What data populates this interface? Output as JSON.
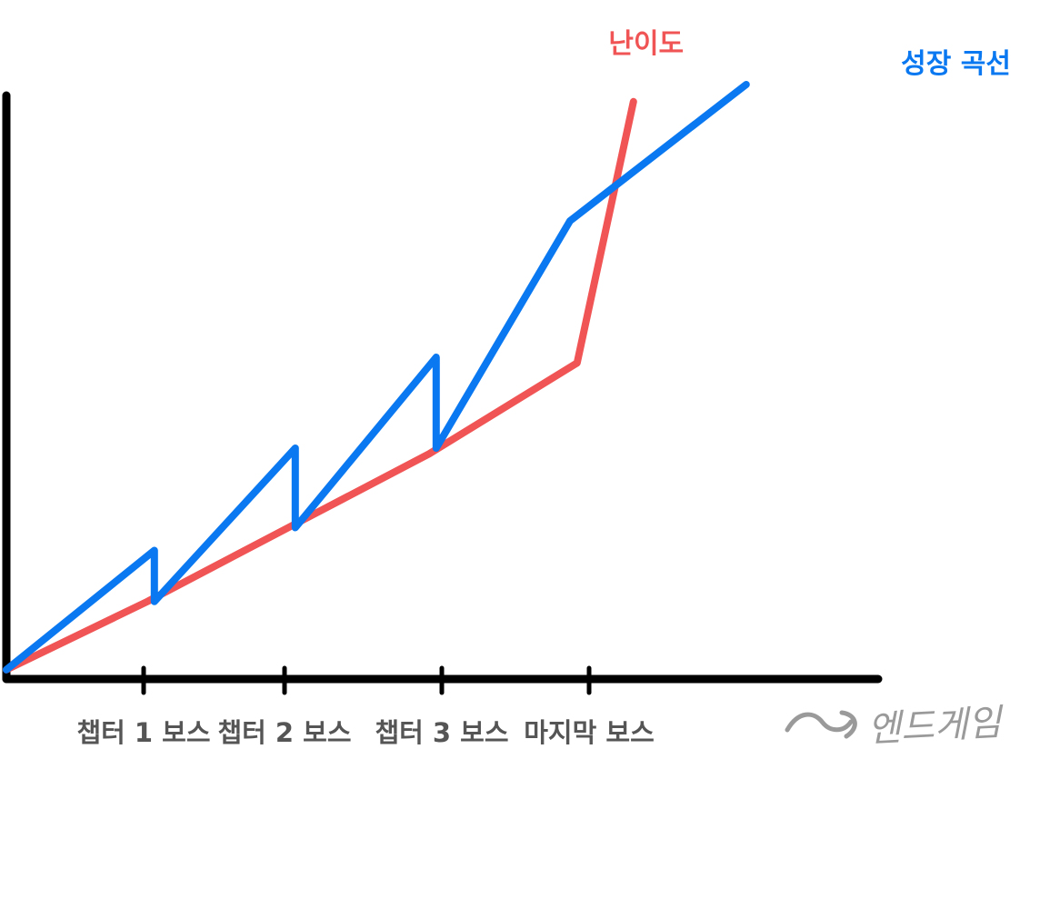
{
  "chart_data": {
    "type": "line",
    "title": "",
    "xlabel": "",
    "ylabel": "",
    "x_ticks": [
      {
        "label": "챕터 1 보스",
        "x": 1
      },
      {
        "label": "챕터 2 보스",
        "x": 2
      },
      {
        "label": "챕터 3 보스",
        "x": 3
      },
      {
        "label": "마지막 보스",
        "x": 4
      }
    ],
    "xlim": [
      0,
      5.2
    ],
    "ylim": [
      0,
      10
    ],
    "grid": false,
    "series": [
      {
        "name": "난이도",
        "color": "#f05454",
        "points": [
          [
            0,
            0.1
          ],
          [
            1,
            1.3
          ],
          [
            2,
            2.6
          ],
          [
            3,
            3.9
          ],
          [
            4.05,
            5.5
          ],
          [
            4.45,
            10.1
          ]
        ]
      },
      {
        "name": "성장 곡선",
        "color": "#0a78f0",
        "points": [
          [
            0,
            0.1
          ],
          [
            1.05,
            2.2
          ],
          [
            1.05,
            1.3
          ],
          [
            2.05,
            4.0
          ],
          [
            2.05,
            2.6
          ],
          [
            3.05,
            5.6
          ],
          [
            3.05,
            4.0
          ],
          [
            4.0,
            8.0
          ],
          [
            5.25,
            10.4
          ]
        ]
      }
    ],
    "annotation": {
      "text": "엔드게임",
      "style": "handwritten-arrow",
      "color": "#9a9a9a"
    }
  }
}
